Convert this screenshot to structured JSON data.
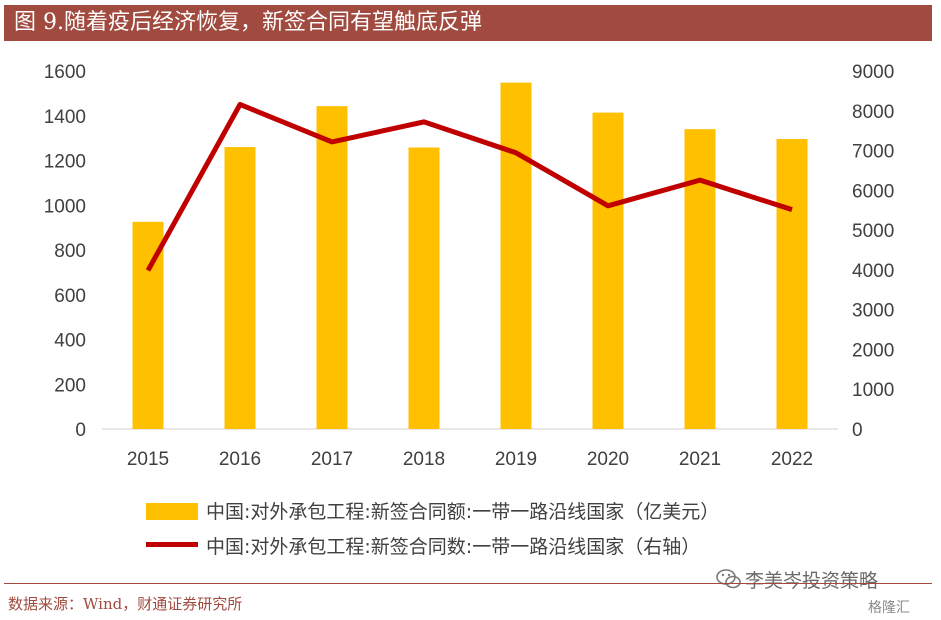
{
  "header": {
    "title": "图 9.随着疫后经济恢复，新签合同有望触底反弹"
  },
  "chart_data": {
    "type": "bar+line",
    "title": "",
    "categories": [
      "2015",
      "2016",
      "2017",
      "2018",
      "2019",
      "2020",
      "2021",
      "2022"
    ],
    "series": [
      {
        "name": "中国:对外承包工程:新签合同额:一带一路沿线国家（亿美元）",
        "type": "bar",
        "axis": "left",
        "color": "#ffc000",
        "values": [
          926,
          1260,
          1443,
          1258,
          1548,
          1414,
          1340,
          1296
        ]
      },
      {
        "name": "中国:对外承包工程:新签合同数:一带一路沿线国家（右轴）",
        "type": "line",
        "axis": "right",
        "color": "#c00000",
        "values": [
          3987,
          8158,
          7217,
          7721,
          6944,
          5611,
          6257,
          5514
        ]
      }
    ],
    "left_axis": {
      "ylim": [
        0,
        1600
      ],
      "ticks": [
        "0",
        "200",
        "400",
        "600",
        "800",
        "1000",
        "1200",
        "1400",
        "1600"
      ]
    },
    "right_axis": {
      "ylim": [
        0,
        9000
      ],
      "ticks": [
        "0",
        "1000",
        "2000",
        "3000",
        "4000",
        "5000",
        "6000",
        "7000",
        "8000",
        "9000"
      ]
    },
    "grid": false,
    "legend_position": "bottom"
  },
  "footer": {
    "source": "数据来源：Wind，财通证券研究所",
    "watermark": "李美岑投资策略",
    "watermark2": "格隆汇"
  },
  "colors": {
    "title_bar": "#a14a3f",
    "bar": "#ffc000",
    "line": "#c00000"
  }
}
